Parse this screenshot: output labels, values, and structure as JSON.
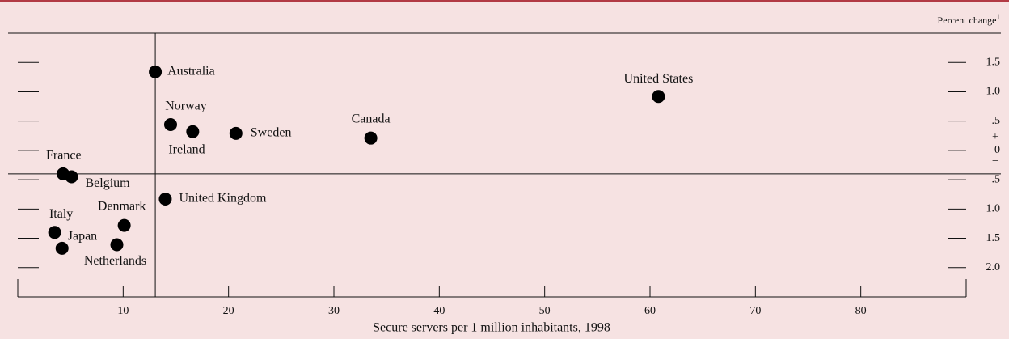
{
  "chart_data": {
    "type": "scatter",
    "y_axis_label": "Percent change",
    "y_axis_label_note": "1",
    "x_axis_label": "Secure servers per 1 million inhabitants, 1998",
    "labels": [
      "Australia",
      "United States",
      "Norway",
      "Ireland",
      "Sweden",
      "Canada",
      "France",
      "Belgium",
      "United Kingdom",
      "Denmark",
      "Italy",
      "Japan",
      "Netherlands"
    ],
    "x": [
      13.05,
      60.8,
      14.5,
      16.6,
      20.7,
      33.5,
      4.3,
      5.1,
      14.0,
      10.1,
      3.5,
      4.2,
      9.4
    ],
    "values": [
      1.34,
      0.92,
      0.44,
      0.32,
      0.29,
      0.21,
      -0.4,
      -0.45,
      -0.83,
      -1.28,
      -1.4,
      -1.67,
      -1.61
    ],
    "color": "#000000",
    "reference_lines": {
      "x": 13.05,
      "y": -0.4
    },
    "xlim": [
      0,
      90
    ],
    "xticks": [
      10,
      20,
      30,
      40,
      50,
      60,
      70,
      80
    ],
    "ylim": [
      -2.5,
      2.0
    ],
    "yticks": [
      1.5,
      {
        "value": 1.0,
        "label": "1.0"
      },
      {
        "value": 0.5,
        "label": ".5"
      },
      0,
      {
        "value": -0.5,
        "label": ".5"
      },
      {
        "value": -1.0,
        "label": "1.0"
      },
      {
        "value": -1.5,
        "label": "1.5"
      },
      {
        "value": -2.0,
        "label": "2.0"
      }
    ],
    "sign_labels": [
      "+",
      "−"
    ]
  }
}
